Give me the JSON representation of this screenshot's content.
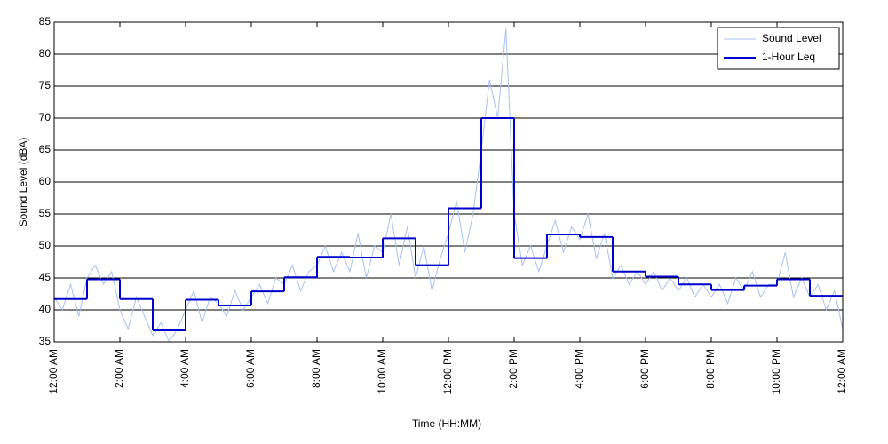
{
  "chart_data": {
    "type": "line",
    "xlabel": "Time (HH:MM)",
    "ylabel": "Sound Level (dBA)",
    "xlim": [
      0,
      24
    ],
    "ylim": [
      35,
      85
    ],
    "xticks": [
      {
        "value": 0,
        "label": "12:00 AM"
      },
      {
        "value": 2,
        "label": "2:00 AM"
      },
      {
        "value": 4,
        "label": "4:00 AM"
      },
      {
        "value": 6,
        "label": "6:00 AM"
      },
      {
        "value": 8,
        "label": "8:00 AM"
      },
      {
        "value": 10,
        "label": "10:00 AM"
      },
      {
        "value": 12,
        "label": "12:00 PM"
      },
      {
        "value": 14,
        "label": "2:00 PM"
      },
      {
        "value": 16,
        "label": "4:00 PM"
      },
      {
        "value": 18,
        "label": "6:00 PM"
      },
      {
        "value": 20,
        "label": "8:00 PM"
      },
      {
        "value": 22,
        "label": "10:00 PM"
      },
      {
        "value": 24,
        "label": "12:00 AM"
      }
    ],
    "yticks": [
      35,
      40,
      45,
      50,
      55,
      60,
      65,
      70,
      75,
      80,
      85
    ],
    "grid": true,
    "legend": "upper right",
    "series": [
      {
        "name": "Sound Level",
        "color": "#a8c0f0",
        "style": "line",
        "x": [
          0,
          0.25,
          0.5,
          0.75,
          1,
          1.25,
          1.5,
          1.75,
          2,
          2.25,
          2.5,
          2.75,
          3,
          3.25,
          3.5,
          3.75,
          4,
          4.25,
          4.5,
          4.75,
          5,
          5.25,
          5.5,
          5.75,
          6,
          6.25,
          6.5,
          6.75,
          7,
          7.25,
          7.5,
          7.75,
          8,
          8.25,
          8.5,
          8.75,
          9,
          9.25,
          9.5,
          9.75,
          10,
          10.25,
          10.5,
          10.75,
          11,
          11.25,
          11.5,
          11.75,
          12,
          12.25,
          12.5,
          12.75,
          13,
          13.25,
          13.5,
          13.75,
          14,
          14.25,
          14.5,
          14.75,
          15,
          15.25,
          15.5,
          15.75,
          16,
          16.25,
          16.5,
          16.75,
          17,
          17.25,
          17.5,
          17.75,
          18,
          18.25,
          18.5,
          18.75,
          19,
          19.25,
          19.5,
          19.75,
          20,
          20.25,
          20.5,
          20.75,
          21,
          21.25,
          21.5,
          21.75,
          22,
          22.25,
          22.5,
          22.75,
          23,
          23.25,
          23.5,
          23.75,
          24
        ],
        "values": [
          42,
          40,
          44,
          39,
          45,
          47,
          44,
          46,
          40,
          37,
          42,
          39,
          36,
          38,
          35,
          37,
          40,
          43,
          38,
          42,
          41,
          39,
          43,
          40,
          42,
          44,
          41,
          45,
          44,
          47,
          43,
          46,
          47,
          50,
          46,
          49,
          46,
          52,
          45,
          50,
          49,
          55,
          47,
          53,
          45,
          50,
          43,
          48,
          52,
          57,
          49,
          55,
          65,
          76,
          70,
          84,
          55,
          47,
          50,
          46,
          50,
          54,
          49,
          53,
          51,
          55,
          48,
          52,
          45,
          47,
          44,
          46,
          44,
          46,
          43,
          45,
          43,
          45,
          42,
          44,
          42,
          44,
          41,
          45,
          43,
          46,
          42,
          44,
          44,
          49,
          42,
          45,
          42,
          44,
          40,
          43,
          37
        ]
      },
      {
        "name": "1-Hour Leq",
        "color": "#0000cc",
        "style": "step",
        "x": [
          0,
          1,
          2,
          3,
          4,
          5,
          6,
          7,
          8,
          9,
          10,
          11,
          12,
          13,
          14,
          15,
          16,
          17,
          18,
          19,
          20,
          21,
          22,
          23
        ],
        "values": [
          41.7,
          44.8,
          41.7,
          36.8,
          41.6,
          40.7,
          42.9,
          45.1,
          48.3,
          48.2,
          51.2,
          47.0,
          55.9,
          70.0,
          48.1,
          51.8,
          51.4,
          46.0,
          45.2,
          44.0,
          43.1,
          43.8,
          44.8,
          42.2
        ]
      }
    ]
  }
}
